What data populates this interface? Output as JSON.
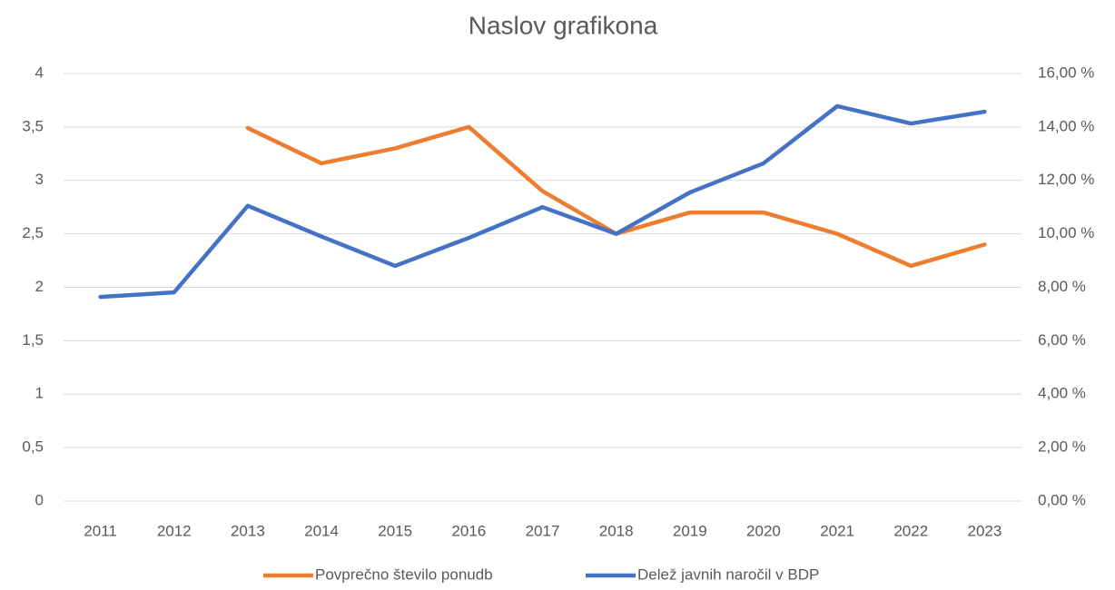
{
  "chart_data": {
    "type": "line",
    "title": "Naslov grafikona",
    "categories": [
      "2011",
      "2012",
      "2013",
      "2014",
      "2015",
      "2016",
      "2017",
      "2018",
      "2019",
      "2020",
      "2021",
      "2022",
      "2023"
    ],
    "series": [
      {
        "name": "Povprečno število ponudb",
        "color": "#ed7d31",
        "values": [
          null,
          null,
          3.49,
          3.16,
          3.3,
          3.5,
          2.9,
          2.5,
          2.7,
          2.7,
          2.5,
          2.2,
          2.4
        ]
      },
      {
        "name": "Delež javnih naročil v BDP",
        "color": "#4472c4",
        "axis": "y2",
        "values": [
          7.64,
          7.81,
          11.05,
          9.9,
          8.8,
          9.85,
          11.0,
          10.0,
          11.55,
          12.64,
          14.78,
          14.13,
          14.57
        ]
      }
    ],
    "ylim": [
      0,
      4
    ],
    "yticks": [
      0,
      {
        "value": 0.5,
        "label": "0,5"
      },
      1,
      {
        "value": 1.5,
        "label": "1,5"
      },
      2,
      {
        "value": 2.5,
        "label": "2,5"
      },
      3,
      {
        "value": 3.5,
        "label": "3,5"
      },
      4
    ],
    "y2lim": [
      0,
      16
    ],
    "y2ticks": [
      {
        "value": 0,
        "label": "0,00 %"
      },
      {
        "value": 2,
        "label": "2,00 %"
      },
      {
        "value": 4,
        "label": "4,00 %"
      },
      {
        "value": 6,
        "label": "6,00 %"
      },
      {
        "value": 8,
        "label": "8,00 %"
      },
      {
        "value": 10,
        "label": "10,00 %"
      },
      {
        "value": 12,
        "label": "12,00 %"
      },
      {
        "value": 14,
        "label": "14,00 %"
      },
      {
        "value": 16,
        "label": "16,00 %"
      }
    ],
    "grid": true,
    "legend": "bottom"
  }
}
